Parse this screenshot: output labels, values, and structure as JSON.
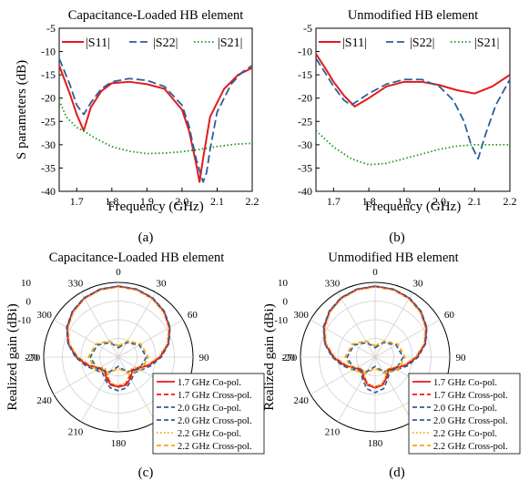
{
  "figure": {
    "captions": [
      "(a)",
      "(b)",
      "(c)",
      "(d)"
    ]
  },
  "colors": {
    "s11": "#e41a1c",
    "s22": "#2c5f96",
    "s21": "#1a9a1a",
    "co_1_7": "#e41a1c",
    "cross_1_7": "#e41a1c",
    "co_2_0": "#2c5f96",
    "cross_2_0": "#2c5f96",
    "co_2_2": "#f5a800",
    "cross_2_2": "#f5a800"
  },
  "chart_data": [
    {
      "type": "line",
      "title": "Capacitance-Loaded HB element",
      "xlabel": "Frequency (GHz)",
      "ylabel": "S parameters (dB)",
      "xlim": [
        1.65,
        2.2
      ],
      "ylim": [
        -40,
        -5
      ],
      "xticks": [
        1.7,
        1.8,
        1.9,
        2.0,
        2.1,
        2.2
      ],
      "yticks": [
        -40,
        -35,
        -30,
        -25,
        -20,
        -15,
        -10,
        -5
      ],
      "legend": "top",
      "series": [
        {
          "name": "|S11|",
          "style": "solid",
          "x": [
            1.65,
            1.68,
            1.7,
            1.72,
            1.74,
            1.77,
            1.8,
            1.85,
            1.9,
            1.95,
            2.0,
            2.02,
            2.04,
            2.05,
            2.06,
            2.08,
            2.12,
            2.16,
            2.2
          ],
          "y": [
            -13,
            -19,
            -23.5,
            -27,
            -22,
            -18.5,
            -16.8,
            -16.5,
            -17,
            -18,
            -22.5,
            -27,
            -34,
            -38,
            -33,
            -24,
            -18,
            -15,
            -13.5
          ]
        },
        {
          "name": "|S22|",
          "style": "dashed",
          "x": [
            1.65,
            1.68,
            1.7,
            1.72,
            1.74,
            1.77,
            1.8,
            1.85,
            1.9,
            1.95,
            2.0,
            2.02,
            2.04,
            2.06,
            2.07,
            2.08,
            2.1,
            2.14,
            2.17,
            2.2
          ],
          "y": [
            -11.5,
            -17,
            -21.5,
            -23.5,
            -21,
            -18,
            -16.5,
            -15.8,
            -16.2,
            -17.5,
            -21.5,
            -26,
            -33,
            -38,
            -36,
            -31,
            -23,
            -17,
            -14.5,
            -13
          ]
        },
        {
          "name": "|S21|",
          "style": "dotted",
          "x": [
            1.65,
            1.67,
            1.7,
            1.73,
            1.75,
            1.8,
            1.85,
            1.9,
            1.95,
            2.0,
            2.05,
            2.1,
            2.15,
            2.2
          ],
          "y": [
            -20.5,
            -24,
            -26.3,
            -27.5,
            -28.5,
            -30.4,
            -31.4,
            -31.9,
            -31.8,
            -31.5,
            -31,
            -30.4,
            -29.9,
            -29.7
          ]
        }
      ]
    },
    {
      "type": "line",
      "title": "Unmodified HB element",
      "xlabel": "Frequency (GHz)",
      "ylabel": "",
      "xlim": [
        1.65,
        2.2
      ],
      "ylim": [
        -40,
        -5
      ],
      "xticks": [
        1.7,
        1.8,
        1.9,
        2.0,
        2.1,
        2.2
      ],
      "yticks": [
        -40,
        -35,
        -30,
        -25,
        -20,
        -15,
        -10,
        -5
      ],
      "legend": "top",
      "series": [
        {
          "name": "|S11|",
          "style": "solid",
          "x": [
            1.65,
            1.68,
            1.7,
            1.73,
            1.76,
            1.8,
            1.85,
            1.9,
            1.95,
            2.0,
            2.05,
            2.1,
            2.15,
            2.2
          ],
          "y": [
            -10.5,
            -14,
            -16.5,
            -19.5,
            -21.8,
            -20,
            -17.5,
            -16.5,
            -16.5,
            -17.2,
            -18.3,
            -19,
            -17.5,
            -15
          ]
        },
        {
          "name": "|S22|",
          "style": "dashed",
          "x": [
            1.65,
            1.68,
            1.7,
            1.73,
            1.75,
            1.8,
            1.85,
            1.9,
            1.95,
            2.0,
            2.04,
            2.07,
            2.09,
            2.11,
            2.13,
            2.16,
            2.2
          ],
          "y": [
            -11.5,
            -15,
            -17.5,
            -20.5,
            -21.5,
            -19,
            -17,
            -16,
            -16,
            -17.5,
            -20.5,
            -25,
            -30,
            -33,
            -28,
            -21.5,
            -16
          ]
        },
        {
          "name": "|S21|",
          "style": "dotted",
          "x": [
            1.65,
            1.7,
            1.75,
            1.8,
            1.85,
            1.9,
            1.95,
            2.0,
            2.05,
            2.1,
            2.15,
            2.2
          ],
          "y": [
            -27,
            -30.5,
            -33,
            -34.3,
            -34,
            -33,
            -32,
            -31,
            -30.3,
            -30,
            -30,
            -30
          ]
        }
      ]
    },
    {
      "type": "polar",
      "title": "Capacitance-Loaded HB element",
      "ylabel": "Realized gain (dBi)",
      "radial_ticks": [
        10,
        0,
        -10,
        -20
      ],
      "rlim": [
        -30,
        10
      ],
      "angle_ticks": [
        0,
        30,
        60,
        90,
        180,
        210,
        240,
        270,
        300,
        330
      ],
      "legend": "right",
      "series": [
        {
          "name": "1.7 GHz Co-pol.",
          "style": "solid",
          "color_key": "co_1_7",
          "theta": [
            0,
            15,
            30,
            45,
            60,
            75,
            90,
            105,
            120,
            135,
            150,
            165,
            180,
            195,
            210,
            225,
            240,
            255,
            270,
            285,
            300,
            315,
            330,
            345
          ],
          "r": [
            8,
            7.6,
            6.5,
            4.6,
            1.8,
            -2.2,
            -7.5,
            -13,
            -18,
            -19.5,
            -17,
            -14.5,
            -14,
            -14.5,
            -17,
            -19.5,
            -18,
            -13,
            -7.5,
            -2.2,
            1.8,
            4.6,
            6.5,
            7.6
          ]
        },
        {
          "name": "1.7 GHz Cross-pol.",
          "style": "dashed",
          "color_key": "cross_1_7",
          "theta": [
            0,
            15,
            30,
            45,
            60,
            75,
            90,
            105,
            120,
            135,
            150,
            165,
            180,
            195,
            210,
            225,
            240,
            255,
            270,
            285,
            300,
            315,
            330,
            345
          ],
          "r": [
            7.8,
            7.4,
            6.3,
            4.4,
            1.5,
            -2.5,
            -8,
            -13.5,
            -18.5,
            -20,
            -18,
            -15,
            -14.5,
            -15,
            -18,
            -20,
            -18.5,
            -13.5,
            -8,
            -2.5,
            1.5,
            4.4,
            6.3,
            7.4
          ]
        },
        {
          "name": "2.0 GHz Co-pol.",
          "style": "dashed",
          "color_key": "co_2_0",
          "theta": [
            0,
            15,
            30,
            45,
            60,
            75,
            90,
            105,
            120,
            135,
            150,
            165,
            180,
            195,
            210,
            225,
            240,
            255,
            270,
            285,
            300,
            315,
            330,
            345
          ],
          "r": [
            8,
            7.7,
            6.7,
            4.8,
            2,
            -2,
            -7,
            -12,
            -16,
            -18,
            -16,
            -13,
            -12,
            -13,
            -16,
            -18,
            -16,
            -12,
            -7,
            -2,
            2,
            4.8,
            6.7,
            7.7
          ]
        },
        {
          "name": "2.0 GHz Cross-pol.",
          "style": "dashed",
          "color_key": "cross_2_0",
          "theta": [
            0,
            30,
            60,
            90,
            120,
            150,
            180,
            210,
            240,
            270,
            300,
            330
          ],
          "r": [
            -25,
            -21,
            -17,
            -15,
            -17,
            -21,
            -25,
            -21,
            -17,
            -15,
            -17,
            -21
          ]
        },
        {
          "name": "2.2 GHz Co-pol.",
          "style": "dotted",
          "color_key": "co_2_2",
          "theta": [
            0,
            15,
            30,
            45,
            60,
            75,
            90,
            105,
            120,
            135,
            150,
            165,
            180,
            195,
            210,
            225,
            240,
            255,
            270,
            285,
            300,
            315,
            330,
            345
          ],
          "r": [
            7.5,
            7.1,
            6,
            4,
            1,
            -3,
            -8.5,
            -14,
            -19,
            -21,
            -18.5,
            -15.5,
            -15,
            -15.5,
            -18.5,
            -21,
            -19,
            -14,
            -8.5,
            -3,
            1,
            4,
            6,
            7.1
          ]
        },
        {
          "name": "2.2 GHz Cross-pol.",
          "style": "dashed",
          "color_key": "cross_2_2",
          "theta": [
            0,
            30,
            60,
            90,
            120,
            150,
            180,
            210,
            240,
            270,
            300,
            330
          ],
          "r": [
            -24,
            -20,
            -16,
            -14,
            -16,
            -20,
            -24,
            -20,
            -16,
            -14,
            -16,
            -20
          ]
        }
      ]
    },
    {
      "type": "polar",
      "title": "Unmodified HB element",
      "ylabel": "Realized gain (dBi)",
      "radial_ticks": [
        10,
        0,
        -10,
        -20
      ],
      "rlim": [
        -30,
        10
      ],
      "angle_ticks": [
        0,
        30,
        60,
        90,
        180,
        210,
        240,
        270,
        300,
        330
      ],
      "legend": "right",
      "series": [
        {
          "name": "1.7 GHz Co-pol.",
          "style": "solid",
          "color_key": "co_1_7",
          "theta": [
            0,
            15,
            30,
            45,
            60,
            75,
            90,
            105,
            120,
            135,
            150,
            165,
            180,
            195,
            210,
            225,
            240,
            255,
            270,
            285,
            300,
            315,
            330,
            345
          ],
          "r": [
            8,
            7.6,
            6.5,
            4.6,
            1.8,
            -2.2,
            -7.5,
            -13,
            -18,
            -20,
            -17.5,
            -14.5,
            -13.5,
            -14.5,
            -17.5,
            -20,
            -18,
            -13,
            -7.5,
            -2.2,
            1.8,
            4.6,
            6.5,
            7.6
          ]
        },
        {
          "name": "1.7 GHz Cross-pol.",
          "style": "dashed",
          "color_key": "cross_1_7",
          "theta": [
            0,
            15,
            30,
            45,
            60,
            75,
            90,
            105,
            120,
            135,
            150,
            165,
            180,
            195,
            210,
            225,
            240,
            255,
            270,
            285,
            300,
            315,
            330,
            345
          ],
          "r": [
            7.8,
            7.4,
            6.3,
            4.4,
            1.5,
            -2.5,
            -8,
            -13.5,
            -18.5,
            -20.5,
            -18,
            -15,
            -14,
            -15,
            -18,
            -20.5,
            -18.5,
            -13.5,
            -8,
            -2.5,
            1.5,
            4.4,
            6.3,
            7.4
          ]
        },
        {
          "name": "2.0 GHz Co-pol.",
          "style": "dashed",
          "color_key": "co_2_0",
          "theta": [
            0,
            15,
            30,
            45,
            60,
            75,
            90,
            105,
            120,
            135,
            150,
            165,
            180,
            195,
            210,
            225,
            240,
            255,
            270,
            285,
            300,
            315,
            330,
            345
          ],
          "r": [
            8,
            7.7,
            6.7,
            4.8,
            2,
            -2,
            -7,
            -12,
            -16.5,
            -19,
            -16.5,
            -12.5,
            -11,
            -12.5,
            -16.5,
            -19,
            -16.5,
            -12,
            -7,
            -2,
            2,
            4.8,
            6.7,
            7.7
          ]
        },
        {
          "name": "2.0 GHz Cross-pol.",
          "style": "dashed",
          "color_key": "cross_2_0",
          "theta": [
            0,
            30,
            60,
            90,
            120,
            150,
            180,
            210,
            240,
            270,
            300,
            330
          ],
          "r": [
            -25,
            -21,
            -17,
            -15,
            -17,
            -21,
            -25,
            -21,
            -17,
            -15,
            -17,
            -21
          ]
        },
        {
          "name": "2.2 GHz Co-pol.",
          "style": "dotted",
          "color_key": "co_2_2",
          "theta": [
            0,
            15,
            30,
            45,
            60,
            75,
            90,
            105,
            120,
            135,
            150,
            165,
            180,
            195,
            210,
            225,
            240,
            255,
            270,
            285,
            300,
            315,
            330,
            345
          ],
          "r": [
            7.5,
            7.1,
            6,
            4,
            1,
            -3,
            -8.5,
            -14,
            -19,
            -21,
            -18.5,
            -15,
            -14,
            -15,
            -18.5,
            -21,
            -19,
            -14,
            -8.5,
            -3,
            1,
            4,
            6,
            7.1
          ]
        },
        {
          "name": "2.2 GHz Cross-pol.",
          "style": "dashed",
          "color_key": "cross_2_2",
          "theta": [
            0,
            30,
            60,
            90,
            120,
            150,
            180,
            210,
            240,
            270,
            300,
            330
          ],
          "r": [
            -24,
            -20,
            -16,
            -14,
            -16,
            -20,
            -24,
            -20,
            -16,
            -14,
            -16,
            -20
          ]
        }
      ]
    }
  ]
}
